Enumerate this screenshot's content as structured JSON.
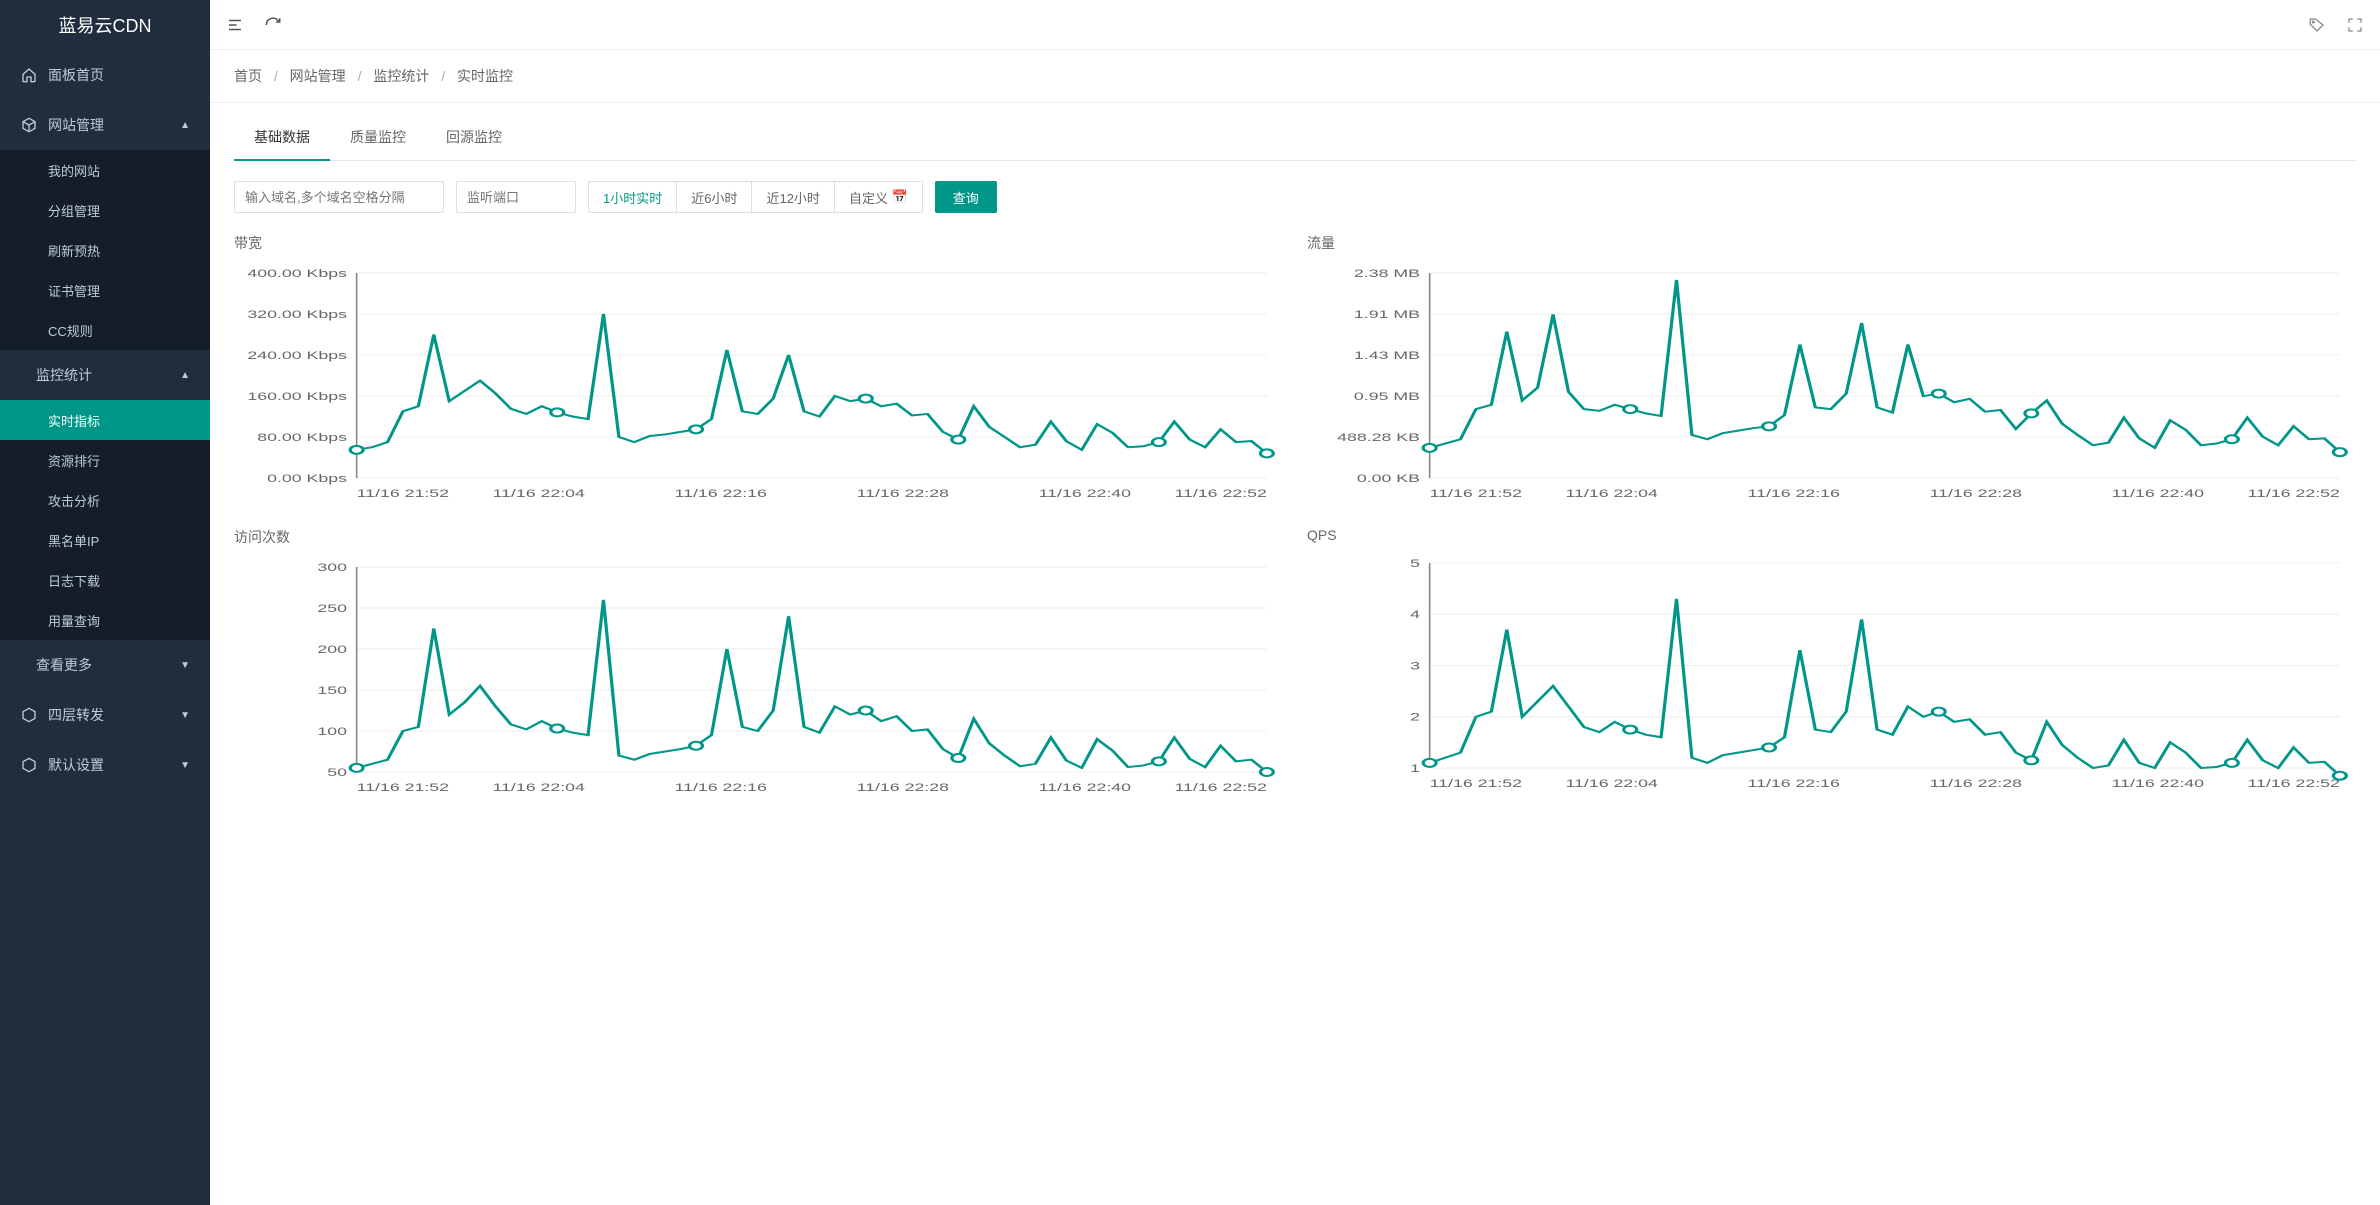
{
  "brand": "蓝易云CDN",
  "sidebar": {
    "home": "面板首页",
    "site_mgmt": "网站管理",
    "site_mgmt_children": {
      "my_sites": "我的网站",
      "groups": "分组管理",
      "refresh": "刷新预热",
      "certs": "证书管理",
      "cc_rules": "CC规则"
    },
    "monitor": "监控统计",
    "monitor_children": {
      "realtime": "实时指标",
      "resource_rank": "资源排行",
      "attack": "攻击分析",
      "blacklist": "黑名单IP",
      "logs": "日志下载",
      "usage": "用量查询"
    },
    "more": "查看更多",
    "layer4": "四层转发",
    "default_settings": "默认设置"
  },
  "breadcrumb": {
    "home": "首页",
    "site": "网站管理",
    "stat": "监控统计",
    "rt": "实时监控"
  },
  "tabs": {
    "basic": "基础数据",
    "quality": "质量监控",
    "origin": "回源监控"
  },
  "filters": {
    "domain_ph": "输入域名,多个域名空格分隔",
    "port_ph": "监听端口",
    "t1h": "1小时实时",
    "t6h": "近6小时",
    "t12h": "近12小时",
    "custom": "自定义",
    "query": "查询"
  },
  "charts": {
    "bandwidth": {
      "title": "带宽",
      "type": "line",
      "line_color": "#009688",
      "background_color": "#ffffff",
      "grid_color": "#eeeeee",
      "axis_color": "#888888",
      "label_color": "#666666",
      "label_fontsize": 11,
      "line_width": 2,
      "marker_fill": "#ffffff",
      "marker_radius": 4,
      "x_labels": [
        "11/16 21:52",
        "11/16 22:04",
        "11/16 22:16",
        "11/16 22:28",
        "11/16 22:40",
        "11/16 22:52"
      ],
      "y_labels": [
        "0.00 Kbps",
        "80.00 Kbps",
        "160.00 Kbps",
        "240.00 Kbps",
        "320.00 Kbps",
        "400.00 Kbps"
      ],
      "y_min": 0,
      "y_max": 400,
      "values": [
        55,
        60,
        70,
        130,
        140,
        280,
        150,
        170,
        190,
        165,
        135,
        125,
        140,
        128,
        120,
        115,
        320,
        80,
        70,
        82,
        85,
        90,
        95,
        115,
        250,
        130,
        125,
        155,
        240,
        130,
        120,
        160,
        150,
        155,
        140,
        145,
        122,
        125,
        90,
        75,
        140,
        100,
        80,
        60,
        65,
        110,
        72,
        55,
        105,
        88,
        60,
        62,
        70,
        110,
        75,
        60,
        95,
        70,
        72,
        48
      ]
    },
    "traffic": {
      "title": "流量",
      "type": "line",
      "line_color": "#009688",
      "background_color": "#ffffff",
      "grid_color": "#eeeeee",
      "axis_color": "#888888",
      "label_color": "#666666",
      "label_fontsize": 11,
      "line_width": 2,
      "marker_fill": "#ffffff",
      "marker_radius": 4,
      "x_labels": [
        "11/16 21:52",
        "11/16 22:04",
        "11/16 22:16",
        "11/16 22:28",
        "11/16 22:40",
        "11/16 22:52"
      ],
      "y_labels": [
        "0.00 KB",
        "488.28 KB",
        "0.95 MB",
        "1.43 MB",
        "1.91 MB",
        "2.38 MB"
      ],
      "y_min": 0,
      "y_max": 2.38,
      "values": [
        0.35,
        0.4,
        0.45,
        0.8,
        0.85,
        1.7,
        0.9,
        1.05,
        1.9,
        1.0,
        0.8,
        0.78,
        0.85,
        0.8,
        0.75,
        0.72,
        2.3,
        0.5,
        0.45,
        0.52,
        0.55,
        0.58,
        0.6,
        0.73,
        1.55,
        0.82,
        0.8,
        0.98,
        1.8,
        0.82,
        0.76,
        1.55,
        0.95,
        0.98,
        0.88,
        0.92,
        0.77,
        0.79,
        0.57,
        0.75,
        0.9,
        0.63,
        0.5,
        0.38,
        0.41,
        0.7,
        0.46,
        0.35,
        0.67,
        0.56,
        0.38,
        0.4,
        0.45,
        0.7,
        0.48,
        0.38,
        0.6,
        0.45,
        0.46,
        0.3
      ]
    },
    "visits": {
      "title": "访问次数",
      "type": "line",
      "line_color": "#009688",
      "background_color": "#ffffff",
      "grid_color": "#eeeeee",
      "axis_color": "#888888",
      "label_color": "#666666",
      "label_fontsize": 11,
      "line_width": 2,
      "marker_fill": "#ffffff",
      "marker_radius": 4,
      "x_labels": [
        "11/16 21:52",
        "11/16 22:04",
        "11/16 22:16",
        "11/16 22:28",
        "11/16 22:40",
        "11/16 22:52"
      ],
      "y_labels": [
        "50",
        "100",
        "150",
        "200",
        "250",
        "300"
      ],
      "y_min": 50,
      "y_max": 300,
      "values": [
        55,
        60,
        65,
        100,
        105,
        225,
        120,
        135,
        155,
        130,
        108,
        102,
        112,
        103,
        98,
        95,
        260,
        70,
        65,
        72,
        75,
        78,
        82,
        95,
        200,
        105,
        100,
        125,
        240,
        105,
        98,
        130,
        120,
        125,
        112,
        118,
        100,
        102,
        78,
        67,
        115,
        85,
        70,
        57,
        60,
        92,
        64,
        55,
        90,
        76,
        56,
        58,
        63,
        92,
        66,
        56,
        82,
        63,
        65,
        50
      ]
    },
    "qps": {
      "title": "QPS",
      "type": "line",
      "line_color": "#009688",
      "background_color": "#ffffff",
      "grid_color": "#eeeeee",
      "axis_color": "#888888",
      "label_color": "#666666",
      "label_fontsize": 11,
      "line_width": 2,
      "marker_fill": "#ffffff",
      "marker_radius": 4,
      "x_labels": [
        "11/16 21:52",
        "11/16 22:04",
        "11/16 22:16",
        "11/16 22:28",
        "11/16 22:40",
        "11/16 22:52"
      ],
      "y_labels": [
        "1",
        "2",
        "3",
        "4",
        "5"
      ],
      "y_min": 1,
      "y_max": 5,
      "values": [
        1.1,
        1.2,
        1.3,
        2.0,
        2.1,
        3.7,
        2.0,
        2.3,
        2.6,
        2.2,
        1.8,
        1.7,
        1.9,
        1.75,
        1.65,
        1.6,
        4.3,
        1.2,
        1.1,
        1.25,
        1.3,
        1.35,
        1.4,
        1.6,
        3.3,
        1.75,
        1.7,
        2.1,
        3.9,
        1.75,
        1.65,
        2.2,
        2.0,
        2.1,
        1.9,
        1.95,
        1.65,
        1.7,
        1.3,
        1.15,
        1.9,
        1.45,
        1.2,
        1.0,
        1.05,
        1.55,
        1.1,
        1.0,
        1.5,
        1.3,
        1.0,
        1.02,
        1.1,
        1.55,
        1.15,
        1.0,
        1.4,
        1.1,
        1.12,
        0.85
      ]
    }
  }
}
